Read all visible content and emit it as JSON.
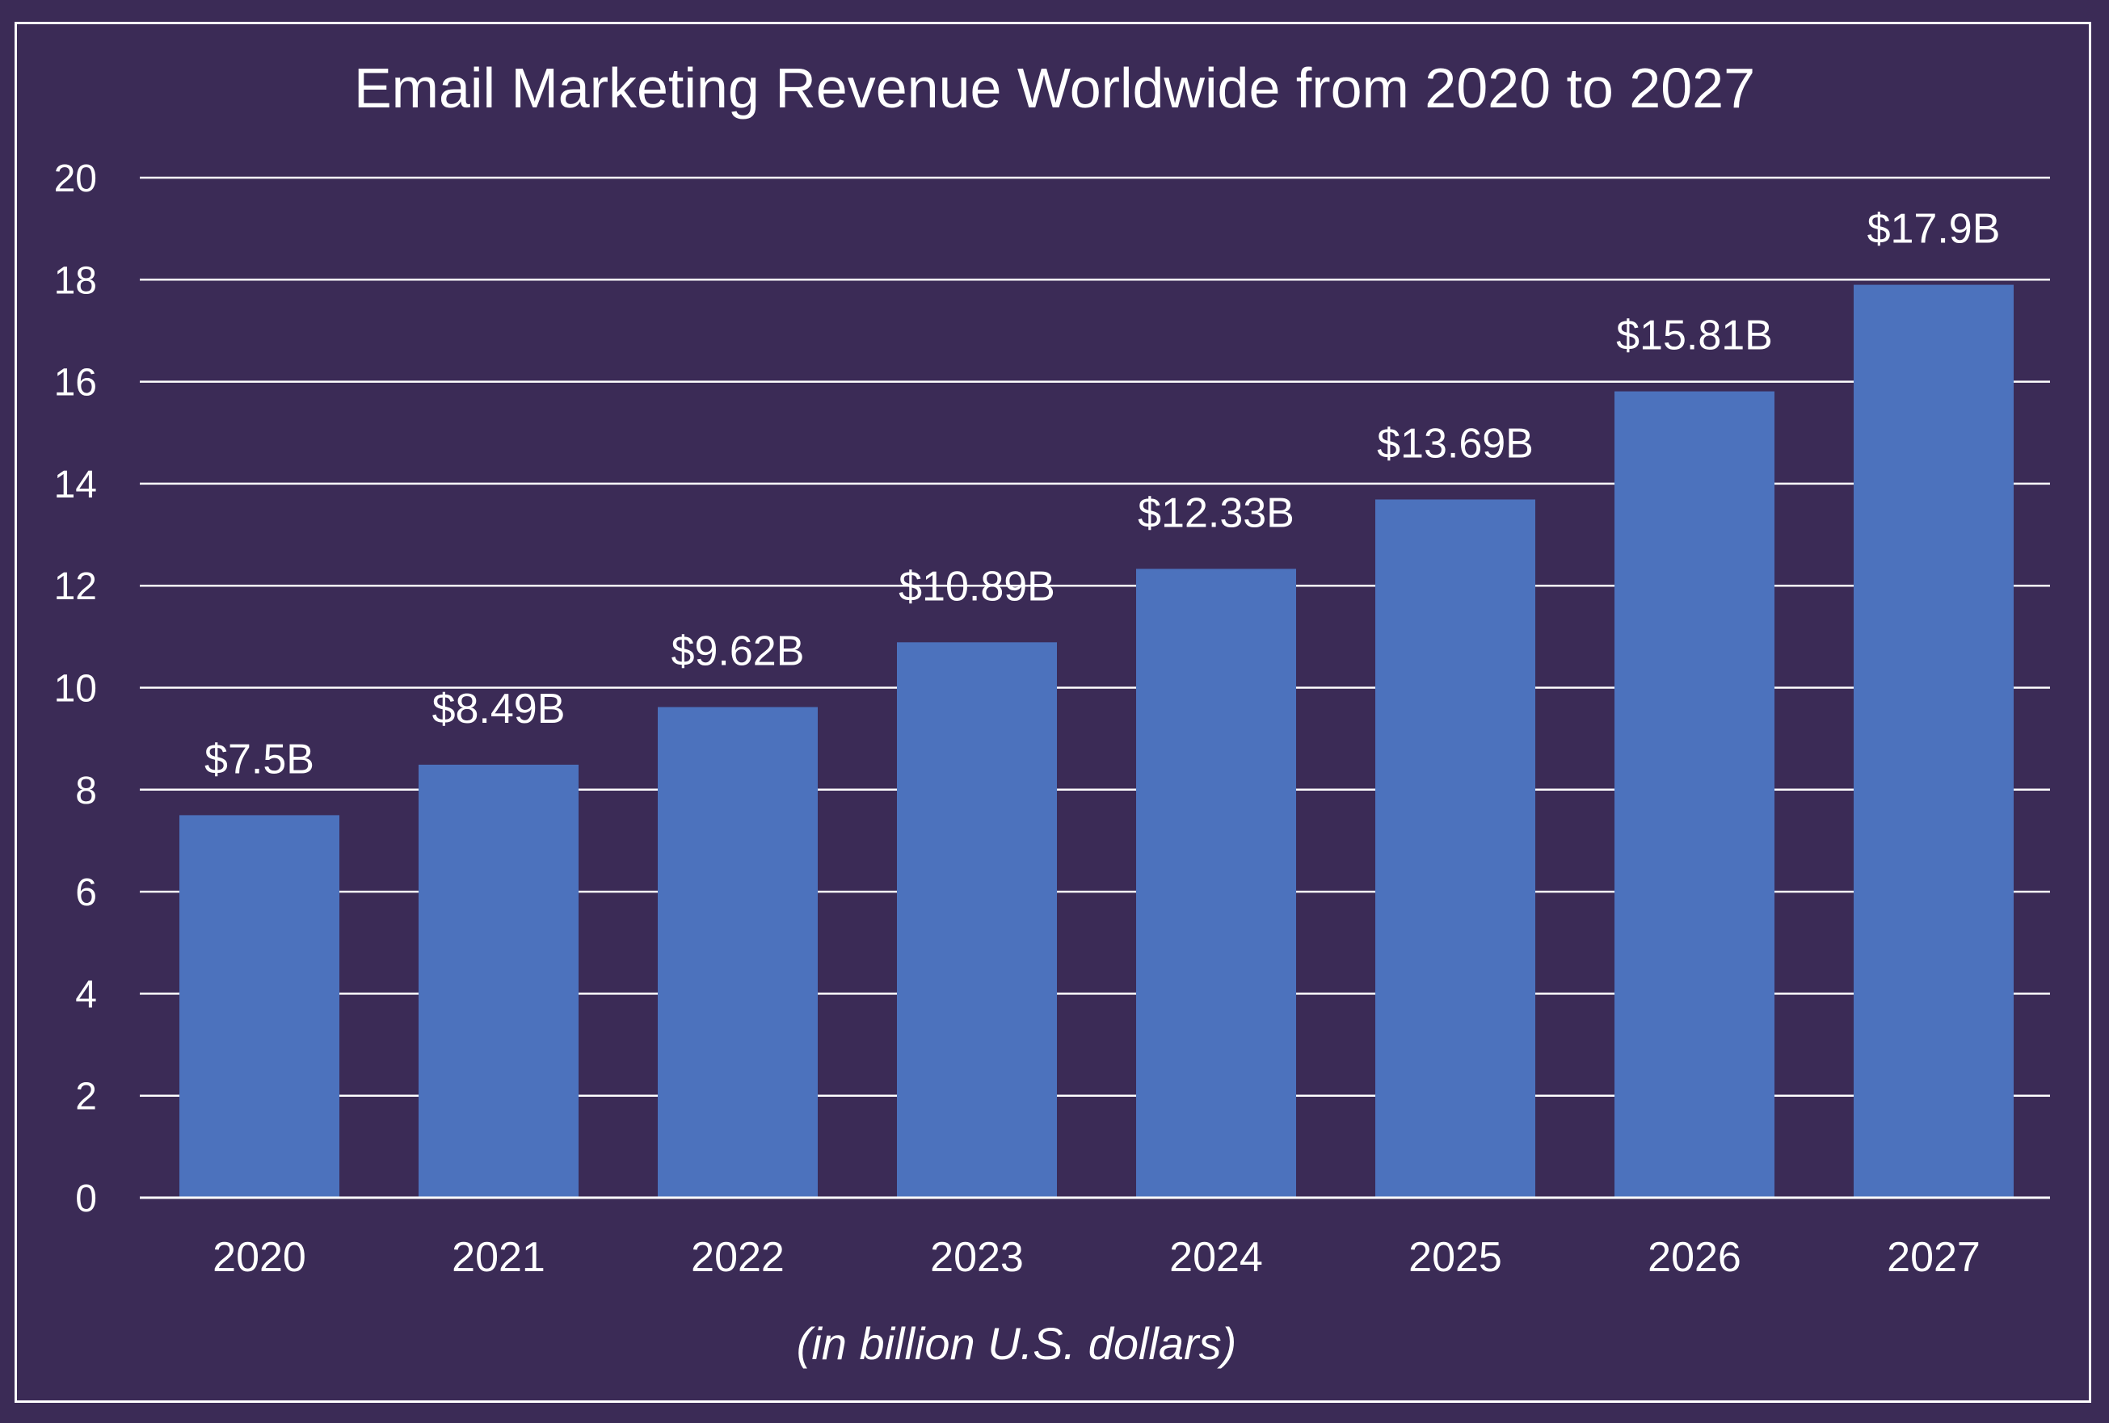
{
  "colors": {
    "background": "#3b2b56",
    "bar": "#4c72bd",
    "text": "#ffffff",
    "grid": "#ffffff"
  },
  "caption": "(in billion U.S. dollars)",
  "chart_data": {
    "type": "bar",
    "title": "Email Marketing Revenue Worldwide from 2020 to 2027",
    "categories": [
      "2020",
      "2021",
      "2022",
      "2023",
      "2024",
      "2025",
      "2026",
      "2027"
    ],
    "values": [
      7.5,
      8.49,
      9.62,
      10.89,
      12.33,
      13.69,
      15.81,
      17.9
    ],
    "data_labels": [
      "$7.5B",
      "$8.49B",
      "$9.62B",
      "$10.89B",
      "$12.33B",
      "$13.69B",
      "$15.81B",
      "$17.9B"
    ],
    "ylim": [
      0,
      20
    ],
    "yticks": [
      "0",
      "2",
      "4",
      "6",
      "8",
      "10",
      "12",
      "14",
      "16",
      "18",
      "20"
    ],
    "grid": true,
    "legend": "none"
  }
}
